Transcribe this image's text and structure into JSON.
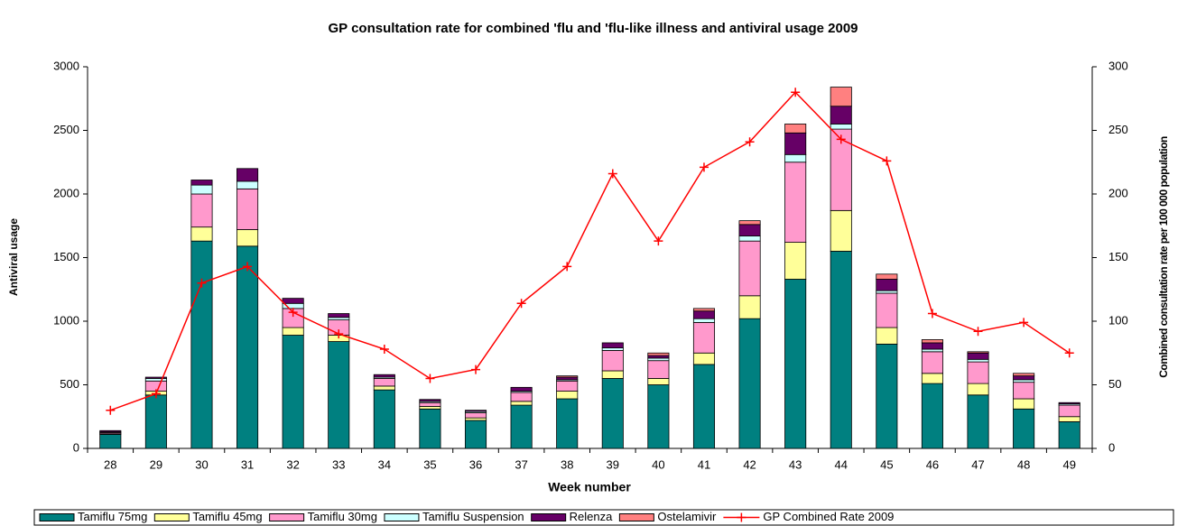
{
  "chart_data": {
    "type": "bar",
    "stacked": true,
    "title": "GP consultation rate for combined 'flu and 'flu-like illness and antiviral usage 2009",
    "xlabel": "Week number",
    "ylabel": "Antiviral usage",
    "y2label": "Combined consultation rate per 100 000 population",
    "categories": [
      "28",
      "29",
      "30",
      "31",
      "32",
      "33",
      "34",
      "35",
      "36",
      "37",
      "38",
      "39",
      "40",
      "41",
      "42",
      "43",
      "44",
      "45",
      "46",
      "47",
      "48",
      "49"
    ],
    "ylim": [
      0,
      3000
    ],
    "yticks": [
      0,
      500,
      1000,
      1500,
      2000,
      2500,
      3000
    ],
    "y2lim": [
      0,
      300
    ],
    "y2ticks": [
      0,
      50,
      100,
      150,
      200,
      250,
      300
    ],
    "series": [
      {
        "name": "Tamiflu 75mg",
        "color": "#008080",
        "values": [
          110,
          420,
          1630,
          1590,
          890,
          840,
          460,
          310,
          220,
          340,
          390,
          550,
          500,
          660,
          1020,
          1330,
          1550,
          820,
          510,
          420,
          310,
          210
        ]
      },
      {
        "name": "Tamiflu 45mg",
        "color": "#ffff99",
        "values": [
          5,
          30,
          110,
          130,
          60,
          50,
          30,
          20,
          20,
          30,
          60,
          60,
          50,
          90,
          180,
          290,
          320,
          130,
          80,
          90,
          80,
          40
        ]
      },
      {
        "name": "Tamiflu 30mg",
        "color": "#ff99cc",
        "values": [
          10,
          80,
          260,
          320,
          150,
          120,
          60,
          30,
          40,
          70,
          80,
          160,
          140,
          240,
          430,
          630,
          640,
          270,
          170,
          170,
          130,
          90
        ]
      },
      {
        "name": "Tamiflu Suspension",
        "color": "#ccffff",
        "values": [
          5,
          20,
          70,
          60,
          40,
          20,
          10,
          10,
          10,
          10,
          10,
          20,
          20,
          30,
          40,
          60,
          40,
          20,
          20,
          20,
          20,
          10
        ]
      },
      {
        "name": "Relenza",
        "color": "#660066",
        "values": [
          10,
          10,
          40,
          100,
          40,
          30,
          20,
          15,
          10,
          30,
          20,
          40,
          20,
          60,
          90,
          170,
          140,
          90,
          50,
          50,
          30,
          10
        ]
      },
      {
        "name": "Ostelamivir",
        "color": "#ff8080",
        "values": [
          0,
          0,
          0,
          0,
          0,
          0,
          0,
          0,
          0,
          0,
          10,
          0,
          20,
          20,
          30,
          70,
          150,
          40,
          25,
          10,
          20,
          0
        ]
      },
      {
        "name": "GP Combined Rate 2009",
        "color": "#ff0000",
        "type": "line",
        "axis": "y2",
        "values": [
          30,
          43,
          130,
          143,
          107,
          90,
          78,
          55,
          62,
          114,
          143,
          216,
          163,
          221,
          241,
          280,
          243,
          226,
          106,
          92,
          99,
          75
        ]
      }
    ]
  }
}
